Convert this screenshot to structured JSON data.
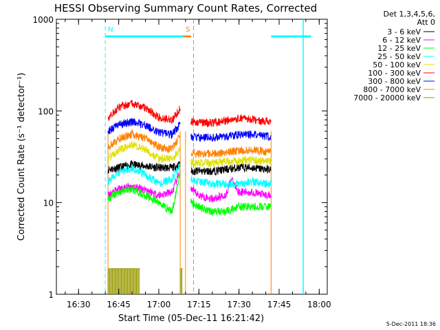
{
  "chart_data": {
    "type": "line",
    "title": "HESSI Observing Summary Count Rates, Corrected",
    "xlabel": "Start Time (05-Dec-11 16:21:42)",
    "ylabel": "Corrected Count Rate (s⁻¹ detector⁻¹)",
    "yscale": "log",
    "ylim": [
      1,
      1000
    ],
    "xlim": [
      "16:21:42",
      "18:03:00"
    ],
    "x_ticks": [
      "16:30",
      "16:45",
      "17:00",
      "17:15",
      "17:30",
      "17:45",
      "18:00"
    ],
    "y_ticks": [
      "1",
      "10",
      "100",
      "1000"
    ],
    "legend_header": [
      "Det 1,3,4,5,6,",
      "Att 0"
    ],
    "legend_position": "top-right-outside",
    "timestamp": "5-Dec-2011 18:36",
    "markers": [
      {
        "label": "N",
        "time": "16:40:00",
        "color": "#00ffff"
      },
      {
        "label": "S",
        "time": "17:09:00",
        "color": "#ff8000"
      }
    ],
    "night_lines": [
      {
        "time": "16:40:00",
        "color": "#00ffff"
      },
      {
        "time": "17:13:00",
        "color": "#ff8000"
      },
      {
        "time": "17:54:00",
        "color": "#00ffff"
      }
    ],
    "data_gaps": [
      {
        "from": "16:40:00",
        "to": "17:12:00",
        "level": 650
      },
      {
        "from": "17:42:00",
        "to": "17:57:00",
        "level": 650
      }
    ],
    "series": [
      {
        "name": "3 - 6 keV",
        "color": "#000000",
        "segments": [
          {
            "x": [
              "16:41",
              "16:45",
              "16:50",
              "16:55",
              "17:00",
              "17:05",
              "17:08"
            ],
            "y": [
              23,
              24,
              26,
              25,
              24,
              24,
              26
            ]
          },
          {
            "x": [
              "17:12",
              "17:15",
              "17:20",
              "17:25",
              "17:30",
              "17:35",
              "17:40",
              "17:42"
            ],
            "y": [
              22,
              22,
              22,
              23,
              24,
              24,
              23,
              23
            ]
          }
        ]
      },
      {
        "name": "6 - 12 keV",
        "color": "#ff00ff",
        "segments": [
          {
            "x": [
              "16:41",
              "16:45",
              "16:50",
              "16:55",
              "17:00",
              "17:05",
              "17:08"
            ],
            "y": [
              12,
              14,
              15,
              14,
              12,
              13,
              22
            ]
          },
          {
            "x": [
              "17:12",
              "17:15",
              "17:20",
              "17:25",
              "17:27",
              "17:30",
              "17:35",
              "17:40",
              "17:42"
            ],
            "y": [
              14,
              12,
              11,
              12,
              18,
              13,
              13,
              12,
              12
            ]
          }
        ]
      },
      {
        "name": "12 - 25 keV",
        "color": "#00ff00",
        "segments": [
          {
            "x": [
              "16:41",
              "16:45",
              "16:50",
              "16:55",
              "17:00",
              "17:05",
              "17:08"
            ],
            "y": [
              11,
              13,
              14,
              12,
              10,
              8,
              22
            ]
          },
          {
            "x": [
              "17:12",
              "17:15",
              "17:20",
              "17:25",
              "17:30",
              "17:35",
              "17:40",
              "17:42"
            ],
            "y": [
              10,
              9,
              8,
              8,
              9,
              9,
              9,
              9
            ]
          }
        ]
      },
      {
        "name": "25 - 50 keV",
        "color": "#00ffff",
        "segments": [
          {
            "x": [
              "16:41",
              "16:45",
              "16:50",
              "16:55",
              "17:00",
              "17:05",
              "17:08"
            ],
            "y": [
              17,
              21,
              24,
              20,
              16,
              18,
              26
            ]
          },
          {
            "x": [
              "17:12",
              "17:15",
              "17:20",
              "17:25",
              "17:30",
              "17:35",
              "17:40",
              "17:42"
            ],
            "y": [
              18,
              17,
              16,
              16,
              16,
              17,
              16,
              16
            ]
          }
        ]
      },
      {
        "name": "50 - 100 keV",
        "color": "#e0e000",
        "segments": [
          {
            "x": [
              "16:41",
              "16:45",
              "16:50",
              "16:55",
              "17:00",
              "17:05",
              "17:08"
            ],
            "y": [
              30,
              37,
              43,
              38,
              30,
              30,
              38
            ]
          },
          {
            "x": [
              "17:12",
              "17:15",
              "17:20",
              "17:25",
              "17:30",
              "17:35",
              "17:40",
              "17:42"
            ],
            "y": [
              27,
              27,
              27,
              28,
              29,
              29,
              28,
              28
            ]
          }
        ]
      },
      {
        "name": "100 - 300 keV",
        "color": "#ff0000",
        "segments": [
          {
            "x": [
              "16:41",
              "16:45",
              "16:50",
              "16:55",
              "17:00",
              "17:05",
              "17:08"
            ],
            "y": [
              85,
              110,
              120,
              108,
              85,
              80,
              105
            ]
          },
          {
            "x": [
              "17:12",
              "17:15",
              "17:20",
              "17:25",
              "17:30",
              "17:35",
              "17:40",
              "17:42"
            ],
            "y": [
              77,
              75,
              74,
              78,
              83,
              80,
              78,
              78
            ]
          }
        ]
      },
      {
        "name": "300 - 800 keV",
        "color": "#0000ff",
        "segments": [
          {
            "x": [
              "16:41",
              "16:45",
              "16:50",
              "16:55",
              "17:00",
              "17:05",
              "17:08"
            ],
            "y": [
              60,
              70,
              76,
              70,
              58,
              55,
              72
            ]
          },
          {
            "x": [
              "17:12",
              "17:15",
              "17:20",
              "17:25",
              "17:30",
              "17:35",
              "17:40",
              "17:42"
            ],
            "y": [
              52,
              51,
              51,
              52,
              55,
              55,
              53,
              53
            ]
          }
        ]
      },
      {
        "name": "800 - 7000 keV",
        "color": "#ff8000",
        "segments": [
          {
            "x": [
              "16:41",
              "16:45",
              "16:50",
              "16:55",
              "17:00",
              "17:05",
              "17:08"
            ],
            "y": [
              40,
              50,
              56,
              50,
              40,
              38,
              55
            ]
          },
          {
            "x": [
              "17:12",
              "17:15",
              "17:20",
              "17:25",
              "17:30",
              "17:35",
              "17:40",
              "17:42"
            ],
            "y": [
              35,
              34,
              34,
              35,
              37,
              37,
              36,
              36
            ]
          }
        ]
      },
      {
        "name": "7000 - 20000 keV",
        "color": "#999900",
        "segments": [
          {
            "x": [
              "16:41",
              "16:45",
              "16:50",
              "16:53"
            ],
            "y": [
              1.9,
              1.9,
              1.9,
              1.9
            ]
          },
          {
            "x": [
              "17:08",
              "17:09"
            ],
            "y": [
              1.9,
              1.9
            ]
          }
        ]
      }
    ]
  }
}
